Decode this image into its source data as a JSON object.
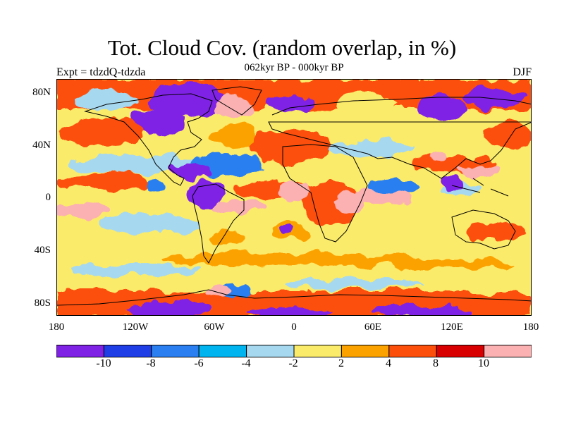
{
  "title": "Tot. Cloud Cov. (random overlap, in %)",
  "subtitle": "062kyr BP - 000kyr BP",
  "left_label": "Expt = tdzdQ-tdzda",
  "right_label": "DJF",
  "lat_labels": [
    "80N",
    "40N",
    "0",
    "40S",
    "80S"
  ],
  "lon_labels": [
    "180",
    "120W",
    "60W",
    "0",
    "60E",
    "120E",
    "180"
  ],
  "colorbar": {
    "colors": [
      "#7f22e6",
      "#1f3ee6",
      "#2c7ff0",
      "#00b4f0",
      "#a6d8ef",
      "#fbeb6a",
      "#fca200",
      "#fc4f0c",
      "#d80000",
      "#fbb1b1"
    ],
    "labels": [
      "-10",
      "-8",
      "-6",
      "-4",
      "-2",
      "2",
      "4",
      "8",
      "10"
    ]
  },
  "chart_data": {
    "type": "heatmap",
    "title": "Tot. Cloud Cov. (random overlap, in %)",
    "subtitle": "062kyr BP - 000kyr BP",
    "variable": "difference in total cloud cover (%)",
    "season": "DJF",
    "experiment": "tdzdQ-tdzda",
    "xlim": [
      -180,
      180
    ],
    "ylim": [
      -90,
      90
    ],
    "levels": [
      -10,
      -8,
      -6,
      -4,
      -2,
      2,
      4,
      8,
      10
    ]
  }
}
